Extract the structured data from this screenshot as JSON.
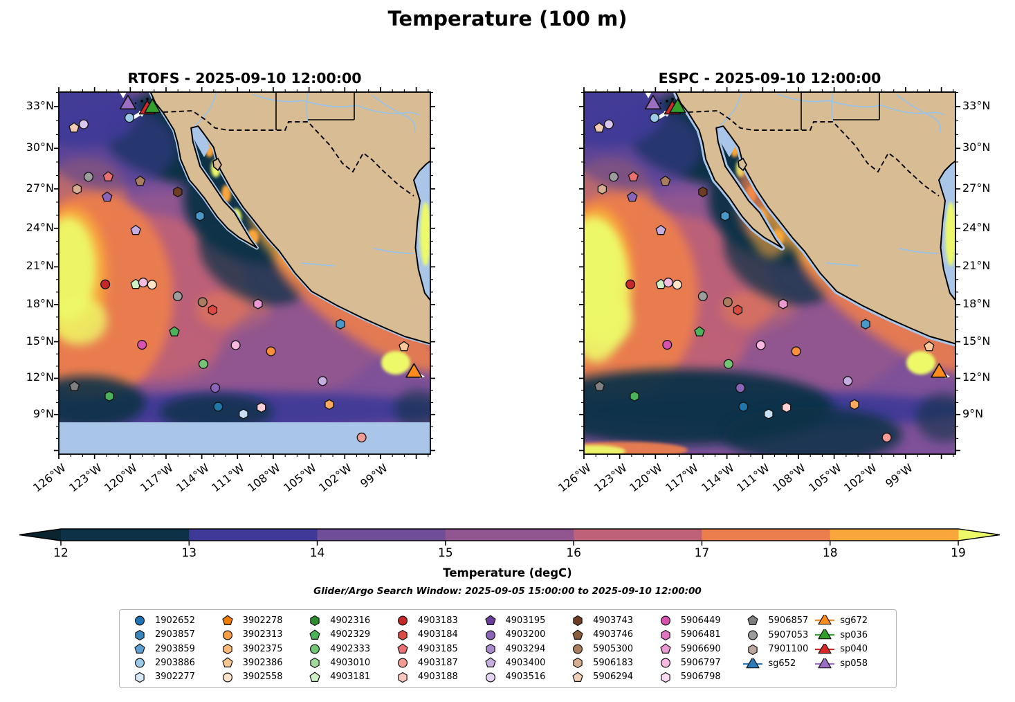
{
  "header": {
    "title": "Temperature (100 m)"
  },
  "panels": [
    {
      "id": "rtofs",
      "title": "RTOFS - 2025-09-10 12:00:00",
      "has_no_data_band": true
    },
    {
      "id": "espc",
      "title": "ESPC - 2025-09-10 12:00:00",
      "has_no_data_band": false
    }
  ],
  "subtitle": "Glider/Argo Search Window: 2025-09-05 15:00:00 to 2025-09-10 12:00:00",
  "chart_data": {
    "type": "heatmap",
    "description": "Two Mercator-projection filled-contour maps of 100 m ocean temperature (RTOFS and ESPC models) over the eastern Pacific / Mexico region, with Argo float and glider observation markers",
    "lon_range_westdeg": [
      126,
      94.8
    ],
    "lat_range_deg": [
      5.7,
      34.0
    ],
    "lat_ticks": [
      {
        "label": "33°N",
        "value": 33
      },
      {
        "label": "30°N",
        "value": 30
      },
      {
        "label": "27°N",
        "value": 27
      },
      {
        "label": "24°N",
        "value": 24
      },
      {
        "label": "21°N",
        "value": 21
      },
      {
        "label": "18°N",
        "value": 18
      },
      {
        "label": "15°N",
        "value": 15
      },
      {
        "label": "12°N",
        "value": 12
      },
      {
        "label": "9°N",
        "value": 9
      }
    ],
    "lon_ticks": [
      {
        "label": "126°W",
        "value": 126
      },
      {
        "label": "123°W",
        "value": 123
      },
      {
        "label": "120°W",
        "value": 120
      },
      {
        "label": "117°W",
        "value": 117
      },
      {
        "label": "114°W",
        "value": 114
      },
      {
        "label": "111°W",
        "value": 111
      },
      {
        "label": "108°W",
        "value": 108
      },
      {
        "label": "105°W",
        "value": 105
      },
      {
        "label": "102°W",
        "value": 102
      },
      {
        "label": "99°W",
        "value": 99
      }
    ],
    "colorbar": {
      "label": "Temperature (degC)",
      "ticks": [
        "12",
        "13",
        "14",
        "15",
        "16",
        "17",
        "18",
        "19"
      ],
      "segment_colors": [
        "#0D3247",
        "#3F3A97",
        "#6F4E97",
        "#91568F",
        "#C06277",
        "#EC7E4E",
        "#F9A63B"
      ],
      "under_color": "#0A2430",
      "over_color": "#EDF969"
    },
    "map_colors": {
      "land": "#D8BC93",
      "shallow_water": "#A9C6E8",
      "river": "#99C2E8",
      "no_data_band": "#A9C6E8",
      "ocean_base": "#7E5198",
      "frame": "#000000"
    },
    "markers": [
      {
        "shape": "triangle",
        "color": "#9A6FC3",
        "fx": 0.186,
        "fy": 0.034
      },
      {
        "shape": "triangle",
        "color": "#D62728",
        "fx": 0.238,
        "fy": 0.048
      },
      {
        "shape": "triangle",
        "color": "#33A02C",
        "fx": 0.252,
        "fy": 0.044
      },
      {
        "shape": "circle",
        "color": "#9CCAE8",
        "fx": 0.19,
        "fy": 0.071
      },
      {
        "shape": "pentagon",
        "color": "#F4CBB4",
        "fx": 0.041,
        "fy": 0.099
      },
      {
        "shape": "circle",
        "color": "#D9C6EF",
        "fx": 0.067,
        "fy": 0.089
      },
      {
        "shape": "circle",
        "color": "#9C9C9C",
        "fx": 0.08,
        "fy": 0.234
      },
      {
        "shape": "pentagon",
        "color": "#E87070",
        "fx": 0.133,
        "fy": 0.234
      },
      {
        "shape": "pentagon",
        "color": "#AB7D60",
        "fx": 0.219,
        "fy": 0.246
      },
      {
        "shape": "hexagon",
        "color": "#6F3D26",
        "fx": 0.32,
        "fy": 0.276
      },
      {
        "shape": "hexagon",
        "color": "#D8AE92",
        "fx": 0.049,
        "fy": 0.268
      },
      {
        "shape": "pentagon",
        "color": "#8A64B8",
        "fx": 0.13,
        "fy": 0.29
      },
      {
        "shape": "hexagon",
        "color": "#4A97C9",
        "fx": 0.38,
        "fy": 0.342
      },
      {
        "shape": "pentagon",
        "color": "#C6ADDF",
        "fx": 0.207,
        "fy": 0.382
      },
      {
        "shape": "circle",
        "color": "#C62728",
        "fx": 0.125,
        "fy": 0.531
      },
      {
        "shape": "pentagon",
        "color": "#CFEFC7",
        "fx": 0.207,
        "fy": 0.531
      },
      {
        "shape": "circle",
        "color": "#F4BCE3",
        "fx": 0.227,
        "fy": 0.526
      },
      {
        "shape": "circle",
        "color": "#FEE3C8",
        "fx": 0.251,
        "fy": 0.532
      },
      {
        "shape": "circle",
        "color": "#9C9C9C",
        "fx": 0.32,
        "fy": 0.564
      },
      {
        "shape": "circle",
        "color": "#AB7D60",
        "fx": 0.387,
        "fy": 0.58
      },
      {
        "shape": "hexagon",
        "color": "#DB4A42",
        "fx": 0.414,
        "fy": 0.602
      },
      {
        "shape": "hexagon",
        "color": "#EC99D3",
        "fx": 0.536,
        "fy": 0.585
      },
      {
        "shape": "hexagon",
        "color": "#4A97C9",
        "fx": 0.758,
        "fy": 0.641
      },
      {
        "shape": "pentagon",
        "color": "#4DB35A",
        "fx": 0.311,
        "fy": 0.662
      },
      {
        "shape": "circle",
        "color": "#D751AE",
        "fx": 0.224,
        "fy": 0.698
      },
      {
        "shape": "circle",
        "color": "#F8B8E0",
        "fx": 0.476,
        "fy": 0.699
      },
      {
        "shape": "circle",
        "color": "#FB8F3B",
        "fx": 0.571,
        "fy": 0.716
      },
      {
        "shape": "circle",
        "color": "#74C476",
        "fx": 0.389,
        "fy": 0.751
      },
      {
        "shape": "pentagon",
        "color": "#FDC998",
        "fx": 0.929,
        "fy": 0.703
      },
      {
        "shape": "triangle",
        "color": "#FF8C1A",
        "fx": 0.956,
        "fy": 0.775
      },
      {
        "shape": "circle",
        "color": "#C6ADDF",
        "fx": 0.71,
        "fy": 0.798
      },
      {
        "shape": "pentagon",
        "color": "#7F7F7F",
        "fx": 0.042,
        "fy": 0.813
      },
      {
        "shape": "hexagon",
        "color": "#4DB35A",
        "fx": 0.136,
        "fy": 0.84
      },
      {
        "shape": "circle",
        "color": "#8A64B8",
        "fx": 0.421,
        "fy": 0.817
      },
      {
        "shape": "circle",
        "color": "#2077A8",
        "fx": 0.429,
        "fy": 0.869
      },
      {
        "shape": "hexagon",
        "color": "#C8E0F4",
        "fx": 0.497,
        "fy": 0.889
      },
      {
        "shape": "hexagon",
        "color": "#FBD0D6",
        "fx": 0.545,
        "fy": 0.871
      },
      {
        "shape": "hexagon",
        "color": "#FDAA60",
        "fx": 0.728,
        "fy": 0.863
      },
      {
        "shape": "circle",
        "color": "#F49B95",
        "fx": 0.815,
        "fy": 0.954
      }
    ]
  },
  "legend": {
    "columns": [
      [
        {
          "label": "1902652",
          "shape": "circle",
          "color": "#2171B5"
        },
        {
          "label": "2903857",
          "shape": "hexagon",
          "color": "#3A87C0"
        },
        {
          "label": "2903859",
          "shape": "pentagon",
          "color": "#5C9FD0"
        },
        {
          "label": "2903886",
          "shape": "circle",
          "color": "#9CCAE8"
        },
        {
          "label": "3902277",
          "shape": "hexagon",
          "color": "#D6E8F7"
        }
      ],
      [
        {
          "label": "3902278",
          "shape": "pentagon",
          "color": "#F07D00"
        },
        {
          "label": "3902313",
          "shape": "circle",
          "color": "#FB9D45"
        },
        {
          "label": "3902375",
          "shape": "hexagon",
          "color": "#FDB97A"
        },
        {
          "label": "3902386",
          "shape": "pentagon",
          "color": "#FCC690"
        },
        {
          "label": "3902558",
          "shape": "circle",
          "color": "#FEE3C8"
        }
      ],
      [
        {
          "label": "4902316",
          "shape": "hexagon",
          "color": "#2E8B2E"
        },
        {
          "label": "4902329",
          "shape": "pentagon",
          "color": "#4DB35A"
        },
        {
          "label": "4902333",
          "shape": "circle",
          "color": "#74C476"
        },
        {
          "label": "4903010",
          "shape": "hexagon",
          "color": "#A1D99B"
        },
        {
          "label": "4903181",
          "shape": "pentagon",
          "color": "#CFEFC7"
        }
      ],
      [
        {
          "label": "4903183",
          "shape": "circle",
          "color": "#C62728"
        },
        {
          "label": "4903184",
          "shape": "hexagon",
          "color": "#DB4A42"
        },
        {
          "label": "4903185",
          "shape": "pentagon",
          "color": "#E87070"
        },
        {
          "label": "4903187",
          "shape": "circle",
          "color": "#F49B95"
        },
        {
          "label": "4903188",
          "shape": "hexagon",
          "color": "#FBC6C0"
        }
      ],
      [
        {
          "label": "4903195",
          "shape": "pentagon",
          "color": "#6A3D9A"
        },
        {
          "label": "4903200",
          "shape": "circle",
          "color": "#8A64B8"
        },
        {
          "label": "4903294",
          "shape": "hexagon",
          "color": "#A98BCB"
        },
        {
          "label": "4903400",
          "shape": "pentagon",
          "color": "#C6ADDF"
        },
        {
          "label": "4903516",
          "shape": "circle",
          "color": "#E2D4F2"
        }
      ],
      [
        {
          "label": "4903743",
          "shape": "hexagon",
          "color": "#6F3D26"
        },
        {
          "label": "4903746",
          "shape": "pentagon",
          "color": "#8C5A3C"
        },
        {
          "label": "5905300",
          "shape": "circle",
          "color": "#AB7D60"
        },
        {
          "label": "5906183",
          "shape": "hexagon",
          "color": "#D8AE92"
        },
        {
          "label": "5906294",
          "shape": "pentagon",
          "color": "#F0D0B8"
        }
      ],
      [
        {
          "label": "5906449",
          "shape": "circle",
          "color": "#D751AE"
        },
        {
          "label": "5906481",
          "shape": "hexagon",
          "color": "#E275C2"
        },
        {
          "label": "5906690",
          "shape": "pentagon",
          "color": "#EC99D3"
        },
        {
          "label": "5906797",
          "shape": "circle",
          "color": "#F8B8E0"
        },
        {
          "label": "5906798",
          "shape": "hexagon",
          "color": "#FBD9EF"
        }
      ],
      [
        {
          "label": "5906857",
          "shape": "pentagon",
          "color": "#7F7F7F"
        },
        {
          "label": "5907053",
          "shape": "circle",
          "color": "#9C9C9C"
        },
        {
          "label": "7901100",
          "shape": "hexagon",
          "color": "#BCA89C"
        },
        {
          "label": "sg652",
          "shape": "triangle",
          "color": "#2B7BBA",
          "line": true
        }
      ],
      [
        {
          "label": "sg672",
          "shape": "triangle",
          "color": "#FF8C1A",
          "line": true
        },
        {
          "label": "sp036",
          "shape": "triangle",
          "color": "#33A02C",
          "line": true
        },
        {
          "label": "sp040",
          "shape": "triangle",
          "color": "#D62728",
          "line": true
        },
        {
          "label": "sp058",
          "shape": "triangle",
          "color": "#9A6FC3",
          "line": true
        }
      ]
    ]
  }
}
